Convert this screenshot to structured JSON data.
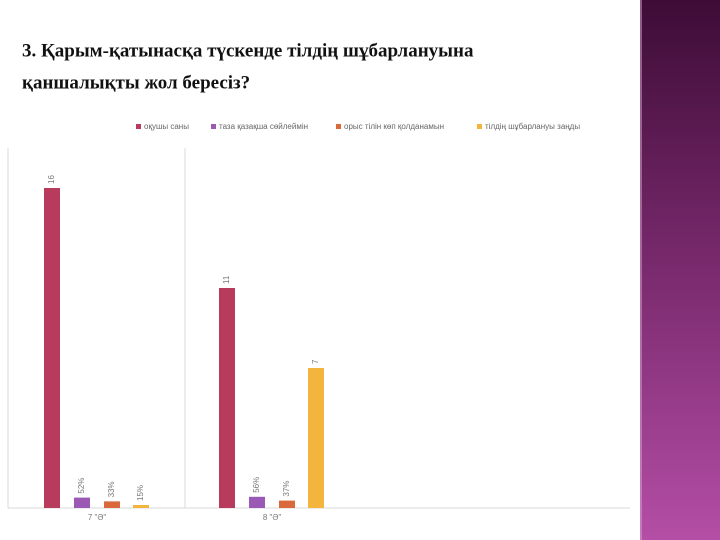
{
  "chart_data": {
    "type": "bar",
    "title": [
      "3. Қарым-қатынасқа түскенде тілдің шұбарлануына",
      "қаншалықты жол бересіз?"
    ],
    "categories": [
      "7 \"Ә\"",
      "8 \"Ә\""
    ],
    "series": [
      {
        "name": "оқушы саны",
        "color": "#b83b5e",
        "values": [
          16,
          11
        ]
      },
      {
        "name": "таза қазақша сөйлеймін",
        "color": "#9b59b6",
        "values": [
          0.52,
          0.56
        ],
        "value_labels": [
          "52%",
          "56%"
        ]
      },
      {
        "name": "орыс тілін көп қолданамын",
        "color": "#d9683a",
        "values": [
          0.33,
          0.37
        ],
        "value_labels": [
          "33%",
          "37%"
        ]
      },
      {
        "name": "тілдің шұбарлануы заңды",
        "color": "#f4b53f",
        "values": [
          0.15,
          7
        ],
        "value_labels": [
          "15%",
          "7"
        ]
      }
    ],
    "ylim": [
      0,
      18
    ],
    "legend": "top"
  }
}
